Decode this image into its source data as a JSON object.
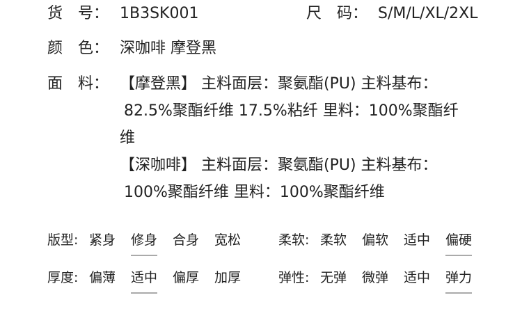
{
  "specs": {
    "item_no": {
      "label": "货　号：",
      "value": "1B3SK001"
    },
    "size": {
      "label": "尺　码：",
      "value": "S/M/L/XL/2XL"
    },
    "color": {
      "label": "颜　色：",
      "value": "深咖啡 摩登黑"
    },
    "fabric": {
      "label": "面　料：",
      "lines": [
        "【摩登黑】 主料面层：聚氨酯(PU) 主料基布：",
        "82.5%聚酯纤维 17.5%粘纤 里料：100%聚酯纤",
        "维",
        "【深咖啡】 主料面层：聚氨酯(PU) 主料基布：",
        "100%聚酯纤维 里料：100%聚酯纤维"
      ]
    }
  },
  "attributes": [
    {
      "label": "版型:",
      "options": [
        "紧身",
        "修身",
        "合身",
        "宽松"
      ],
      "selected": "修身"
    },
    {
      "label": "柔软:",
      "options": [
        "柔软",
        "偏软",
        "适中",
        "偏硬"
      ],
      "selected": "偏硬"
    },
    {
      "label": "厚度:",
      "options": [
        "偏薄",
        "适中",
        "偏厚",
        "加厚"
      ],
      "selected": "适中"
    },
    {
      "label": "弹性:",
      "options": [
        "无弹",
        "微弹",
        "适中",
        "弹力"
      ],
      "selected": "弹力"
    }
  ],
  "colors": {
    "text": "#222222",
    "underline": "#aaaaaa"
  }
}
